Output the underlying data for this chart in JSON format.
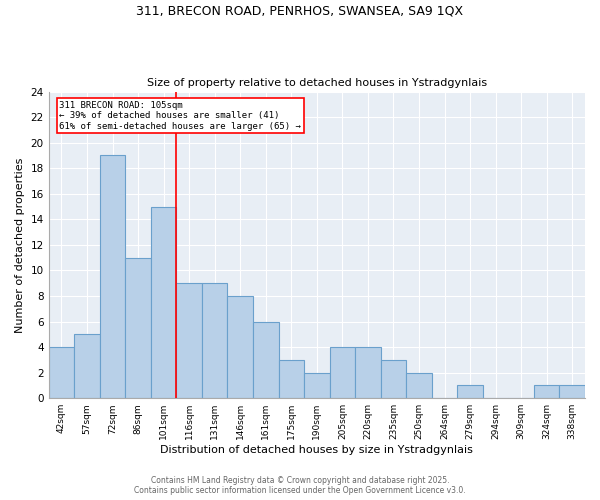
{
  "title_line1": "311, BRECON ROAD, PENRHOS, SWANSEA, SA9 1QX",
  "title_line2": "Size of property relative to detached houses in Ystradgynlais",
  "xlabel": "Distribution of detached houses by size in Ystradgynlais",
  "ylabel": "Number of detached properties",
  "categories": [
    "42sqm",
    "57sqm",
    "72sqm",
    "86sqm",
    "101sqm",
    "116sqm",
    "131sqm",
    "146sqm",
    "161sqm",
    "175sqm",
    "190sqm",
    "205sqm",
    "220sqm",
    "235sqm",
    "250sqm",
    "264sqm",
    "279sqm",
    "294sqm",
    "309sqm",
    "324sqm",
    "338sqm"
  ],
  "values": [
    4,
    5,
    19,
    11,
    15,
    9,
    9,
    8,
    6,
    3,
    2,
    4,
    4,
    3,
    2,
    0,
    1,
    0,
    0,
    1,
    1
  ],
  "bar_color": "#b8d0e8",
  "bar_edgecolor": "#6aa0cc",
  "bar_linewidth": 0.8,
  "vline_x": 4.5,
  "vline_color": "red",
  "vline_linewidth": 1.2,
  "annotation_title": "311 BRECON ROAD: 105sqm",
  "annotation_line2": "← 39% of detached houses are smaller (41)",
  "annotation_line3": "61% of semi-detached houses are larger (65) →",
  "annotation_box_color": "white",
  "annotation_edgecolor": "red",
  "ylim": [
    0,
    24
  ],
  "yticks": [
    0,
    2,
    4,
    6,
    8,
    10,
    12,
    14,
    16,
    18,
    20,
    22,
    24
  ],
  "background_color": "#e8eef5",
  "footer_line1": "Contains HM Land Registry data © Crown copyright and database right 2025.",
  "footer_line2": "Contains public sector information licensed under the Open Government Licence v3.0."
}
